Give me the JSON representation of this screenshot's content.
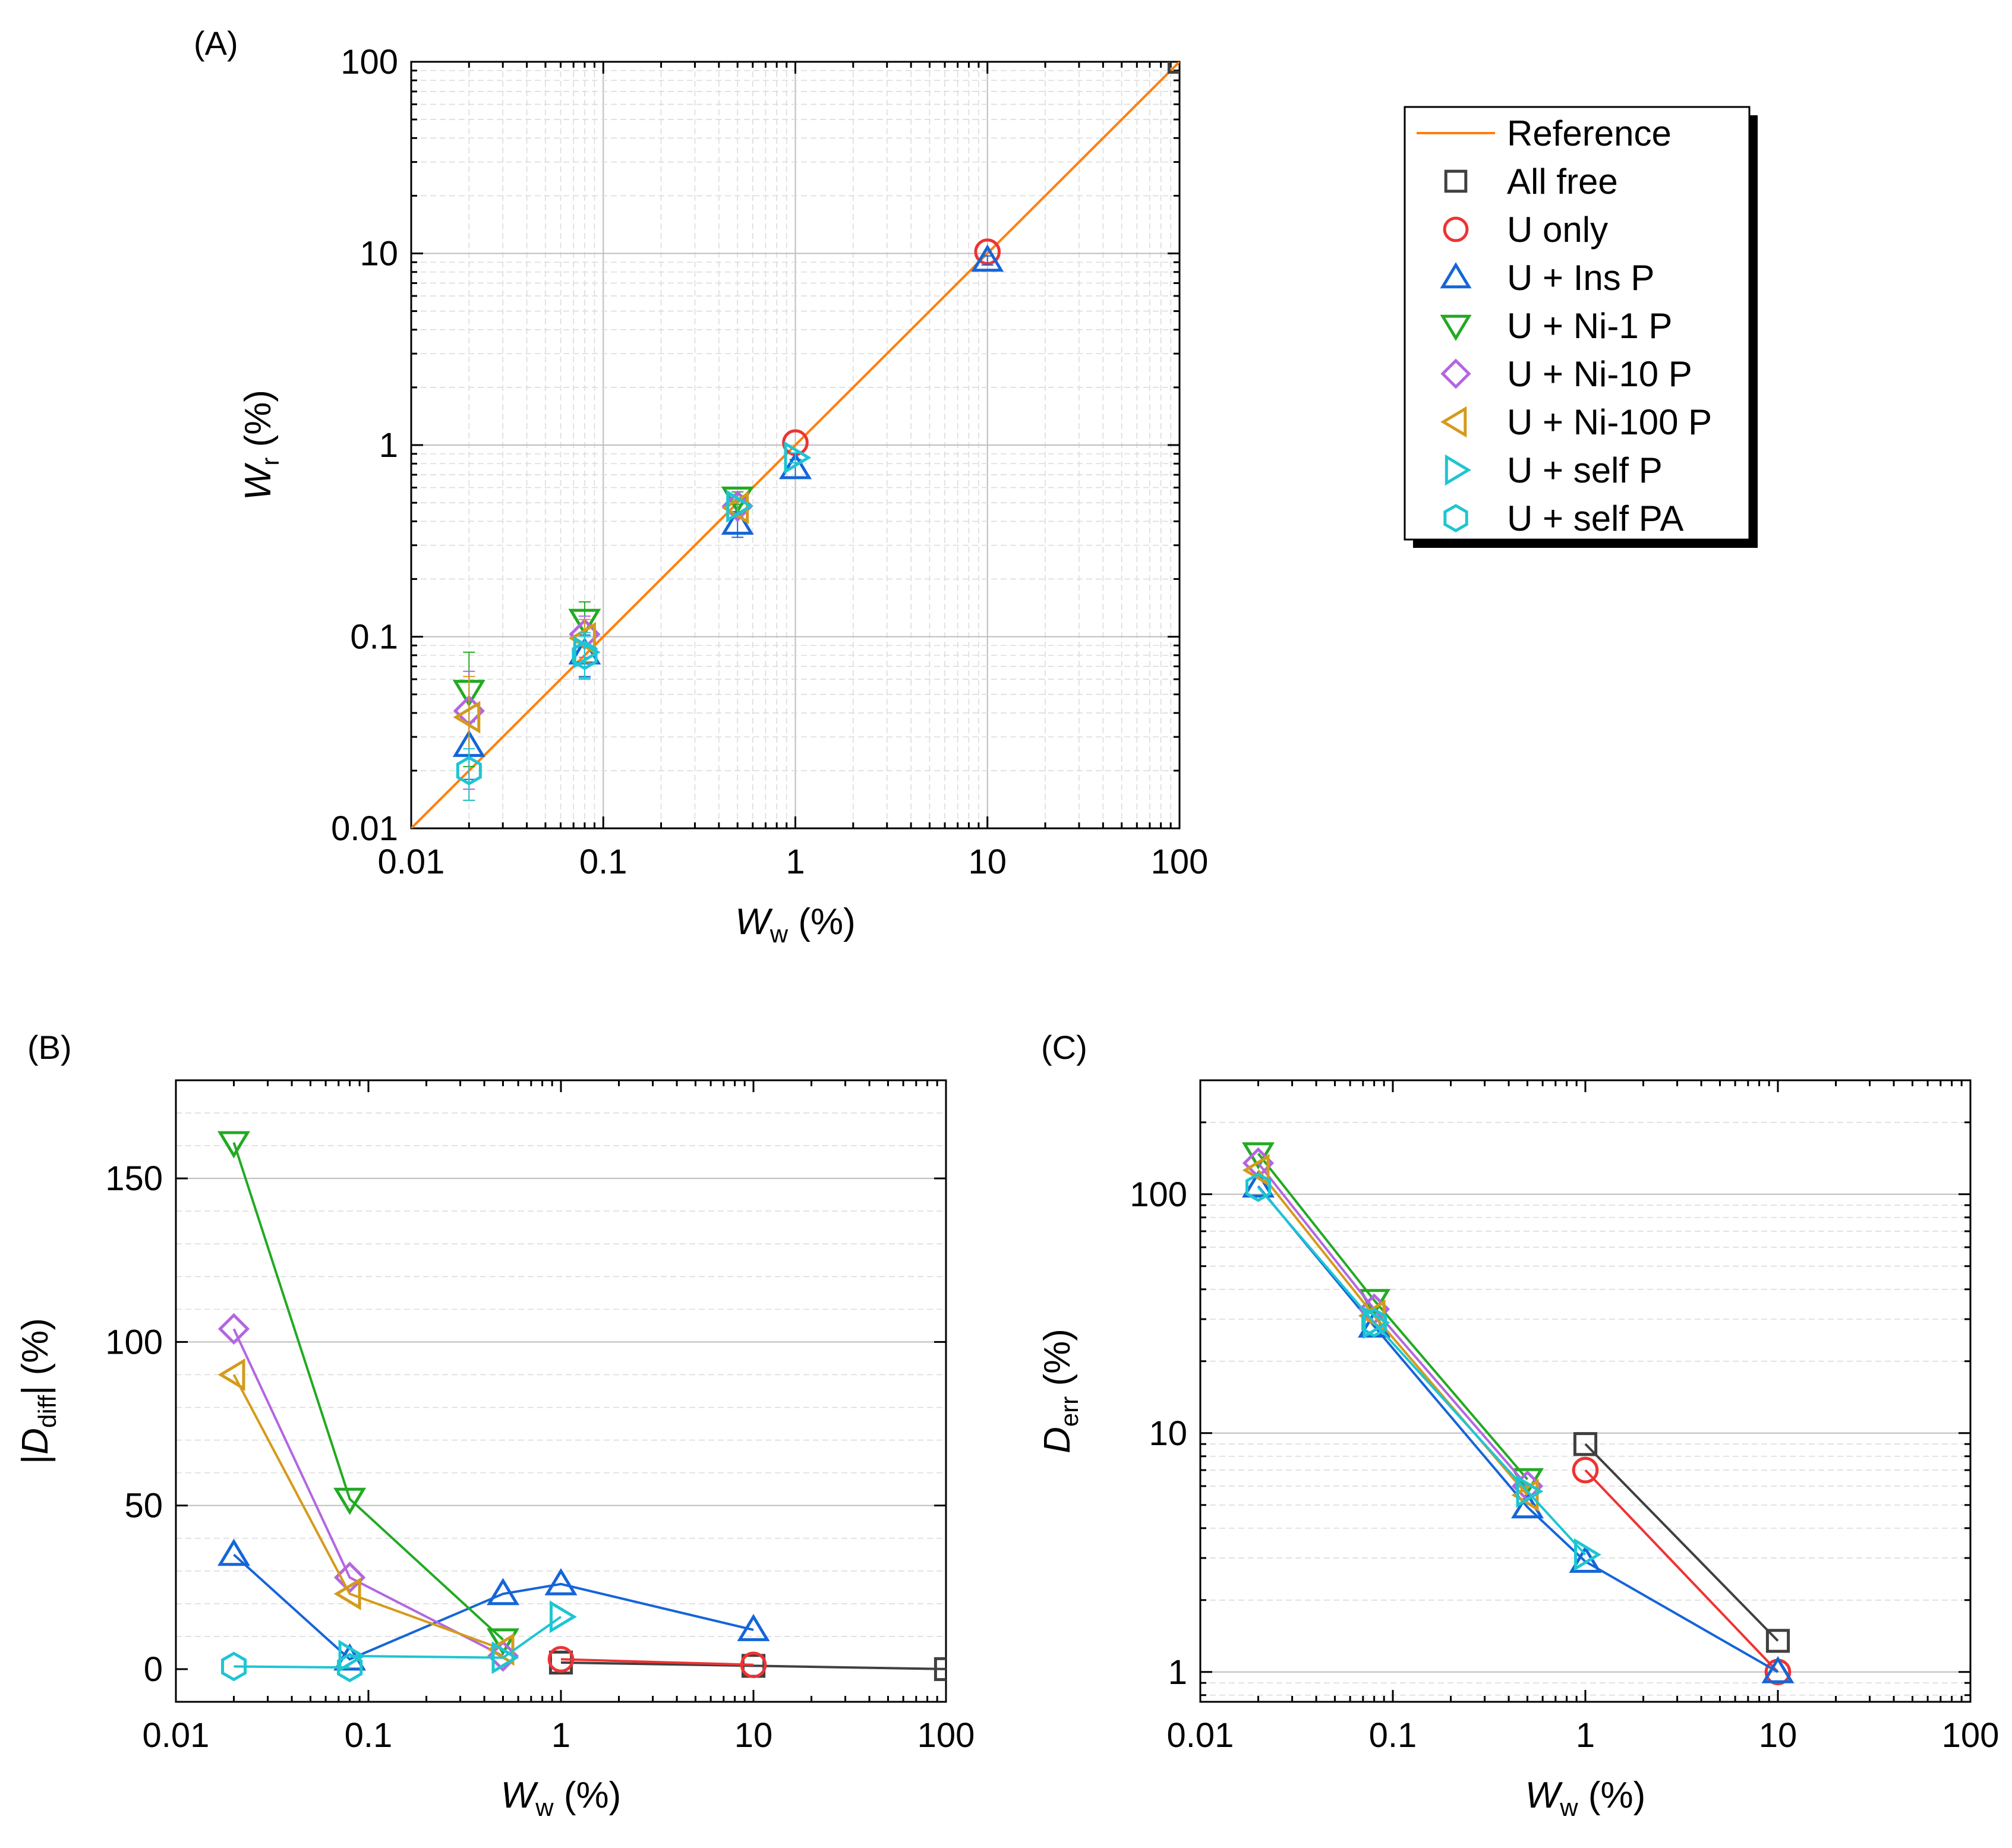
{
  "figure": {
    "panel_labels": [
      "(A)",
      "(B)",
      "(C)"
    ],
    "y_axis_label_A": {
      "main": "W",
      "sub": "r",
      "unit": " (%)"
    },
    "y_axis_label_B": {
      "prefix": "|",
      "main": "D",
      "sub": "diff",
      "unit": "| (%)"
    },
    "y_axis_label_C": {
      "main": "D",
      "sub": "err",
      "unit": " (%)"
    },
    "x_axis_label": {
      "main": "W",
      "sub": "w",
      "unit": " (%)"
    }
  },
  "legend": {
    "entries": [
      {
        "label": "Reference",
        "color": "#ff7f0e",
        "marker": "line"
      },
      {
        "label": "All free",
        "color": "#404040",
        "marker": "square"
      },
      {
        "label": "U only",
        "color": "#ee3333",
        "marker": "circle"
      },
      {
        "label": "U + Ins P",
        "color": "#1565d8",
        "marker": "triangle-up"
      },
      {
        "label": "U + Ni-1 P",
        "color": "#22aa22",
        "marker": "triangle-down"
      },
      {
        "label": "U + Ni-10 P",
        "color": "#b366e0",
        "marker": "diamond"
      },
      {
        "label": "U + Ni-100 P",
        "color": "#d49b1a",
        "marker": "triangle-left"
      },
      {
        "label": "U + self P",
        "color": "#1ec5d2",
        "marker": "triangle-right"
      },
      {
        "label": "U + self PA",
        "color": "#1ec5d2",
        "marker": "hexagon"
      }
    ]
  },
  "chart_data": [
    {
      "panel": "(A)",
      "type": "scatter",
      "xscale": "log",
      "yscale": "log",
      "xlim": [
        0.01,
        100
      ],
      "ylim": [
        0.01,
        100
      ],
      "xticks": [
        "0.01",
        "0.1",
        "1",
        "10",
        "100"
      ],
      "yticks": [
        "0.01",
        "0.1",
        "1",
        "10",
        "100"
      ],
      "xlabel": "Ww (%)",
      "ylabel": "Wr (%)",
      "reference": {
        "name": "Reference",
        "x": [
          0.01,
          100
        ],
        "y": [
          0.01,
          100
        ]
      },
      "series": [
        {
          "name": "All free",
          "x": [
            100
          ],
          "y": [
            100
          ]
        },
        {
          "name": "U only",
          "x": [
            1,
            10
          ],
          "y": [
            1.03,
            10.2
          ]
        },
        {
          "name": "U + Ins P",
          "x": [
            0.02,
            0.08,
            0.5,
            1,
            10
          ],
          "y": [
            0.027,
            0.082,
            0.39,
            0.76,
            9.2
          ],
          "err": [
            0.009,
            0.02,
            0.06,
            0.08,
            0.5
          ]
        },
        {
          "name": "U + Ni-1 P",
          "x": [
            0.02,
            0.08,
            0.5
          ],
          "y": [
            0.052,
            0.122,
            0.53
          ],
          "err": [
            0.031,
            0.03,
            0.04
          ]
        },
        {
          "name": "U + Ni-10 P",
          "x": [
            0.02,
            0.08,
            0.5
          ],
          "y": [
            0.041,
            0.103,
            0.48
          ],
          "err": [
            0.025,
            0.025,
            0.04
          ]
        },
        {
          "name": "U + Ni-100 P",
          "x": [
            0.02,
            0.08,
            0.5
          ],
          "y": [
            0.038,
            0.098,
            0.47
          ],
          "err": [
            0.024,
            0.025,
            0.04
          ]
        },
        {
          "name": "U + self P",
          "x": [
            0.08,
            0.5,
            1
          ],
          "y": [
            0.083,
            0.48,
            0.86
          ],
          "err": [
            0.022,
            0.04,
            0.05
          ]
        },
        {
          "name": "U + self PA",
          "x": [
            0.02,
            0.08
          ],
          "y": [
            0.02,
            0.08
          ],
          "err": [
            0.006,
            0.02
          ]
        }
      ]
    },
    {
      "panel": "(B)",
      "type": "line",
      "xscale": "log",
      "yscale": "linear",
      "xlim": [
        0.01,
        100
      ],
      "ylim": [
        -10,
        180
      ],
      "xticks": [
        "0.01",
        "0.1",
        "1",
        "10",
        "100"
      ],
      "yticks": [
        "0",
        "50",
        "100",
        "150"
      ],
      "xlabel": "Ww (%)",
      "ylabel": "|Ddiff| (%)",
      "series": [
        {
          "name": "All free",
          "x": [
            1,
            10,
            100
          ],
          "y": [
            2,
            1,
            0
          ]
        },
        {
          "name": "U only",
          "x": [
            1,
            10
          ],
          "y": [
            3,
            1.3
          ]
        },
        {
          "name": "U + Ins P",
          "x": [
            0.02,
            0.08,
            0.5,
            1,
            10
          ],
          "y": [
            35,
            3,
            23,
            26,
            12
          ]
        },
        {
          "name": "U + Ni-1 P",
          "x": [
            0.02,
            0.08,
            0.5
          ],
          "y": [
            161,
            52,
            9
          ]
        },
        {
          "name": "U + Ni-10 P",
          "x": [
            0.02,
            0.08,
            0.5
          ],
          "y": [
            104,
            28,
            4
          ]
        },
        {
          "name": "U + Ni-100 P",
          "x": [
            0.02,
            0.08,
            0.5
          ],
          "y": [
            90,
            23,
            6
          ]
        },
        {
          "name": "U + self P",
          "x": [
            0.08,
            0.5,
            1
          ],
          "y": [
            4,
            3.5,
            16
          ]
        },
        {
          "name": "U + self PA",
          "x": [
            0.02,
            0.08
          ],
          "y": [
            0.8,
            0.5
          ]
        }
      ]
    },
    {
      "panel": "(C)",
      "type": "line",
      "xscale": "log",
      "yscale": "log",
      "xlim": [
        0.01,
        100
      ],
      "ylim": [
        0.75,
        300
      ],
      "xticks": [
        "0.01",
        "0.1",
        "1",
        "10",
        "100"
      ],
      "yticks": [
        "1",
        "10",
        "100"
      ],
      "xlabel": "Ww (%)",
      "ylabel": "Derr (%)",
      "series": [
        {
          "name": "All free",
          "x": [
            1,
            10
          ],
          "y": [
            9,
            1.35
          ]
        },
        {
          "name": "U only",
          "x": [
            1,
            10
          ],
          "y": [
            7,
            1
          ]
        },
        {
          "name": "U + Ins P",
          "x": [
            0.02,
            0.08,
            0.5,
            1,
            10
          ],
          "y": [
            108,
            28,
            4.9,
            2.9,
            1
          ]
        },
        {
          "name": "U + Ni-1 P",
          "x": [
            0.02,
            0.08,
            0.5
          ],
          "y": [
            148,
            36,
            6.4
          ]
        },
        {
          "name": "U + Ni-10 P",
          "x": [
            0.02,
            0.08,
            0.5
          ],
          "y": [
            135,
            33,
            6
          ]
        },
        {
          "name": "U + Ni-100 P",
          "x": [
            0.02,
            0.08,
            0.5
          ],
          "y": [
            126,
            31,
            5.5
          ]
        },
        {
          "name": "U + self P",
          "x": [
            0.08,
            0.5,
            1
          ],
          "y": [
            29,
            5.7,
            3.1
          ]
        },
        {
          "name": "U + self PA",
          "x": [
            0.02,
            0.08
          ],
          "y": [
            107,
            29
          ]
        }
      ]
    }
  ]
}
